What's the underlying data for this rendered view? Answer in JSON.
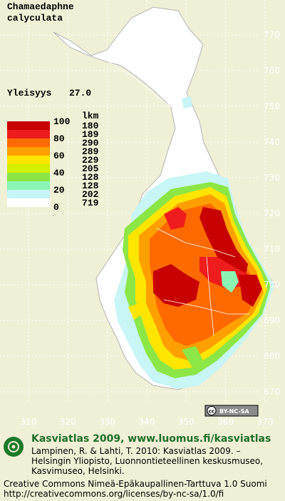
{
  "map": {
    "species": [
      "Chamaedaphne",
      "calyculata"
    ],
    "frequency": {
      "label": "Yleisyys",
      "value": "27.0"
    },
    "legend": {
      "scale_labels": [
        "100",
        "80",
        "60",
        "40",
        "20",
        "0"
      ],
      "count_header": "lkm",
      "counts": [
        "180",
        "189",
        "290",
        "289",
        "229",
        "205",
        "128",
        "128",
        "202",
        "719"
      ],
      "colors": [
        "#c80000",
        "#ee1c1c",
        "#ff6a00",
        "#ffa000",
        "#ffe600",
        "#d2f000",
        "#8ce646",
        "#8cf5b4",
        "#c8f5f5",
        "#ffffff"
      ]
    },
    "yticks": [
      770,
      760,
      750,
      740,
      730,
      720,
      710,
      700,
      690,
      680,
      670
    ],
    "xticks": [
      310,
      320,
      330,
      340,
      350,
      360,
      370
    ],
    "license_badge": "BY-NC-SA"
  },
  "footer": {
    "title": "Kasviatlas 2009, www.luomus.fi/kasviatlas",
    "citation": [
      "Lampinen, R. & Lahti, T. 2010: Kasviatlas 2009. –",
      "Helsingin Yliopisto, Luonnontieteellinen keskusmuseo,",
      "Kasvimuseo, Helsinki."
    ],
    "license": [
      "Creative Commons Nimeä-Epäkaupallinen-Tarttuva 1.0 Suomi",
      "http://creativecommons.org/licenses/by-nc-sa/1.0/fi"
    ]
  }
}
